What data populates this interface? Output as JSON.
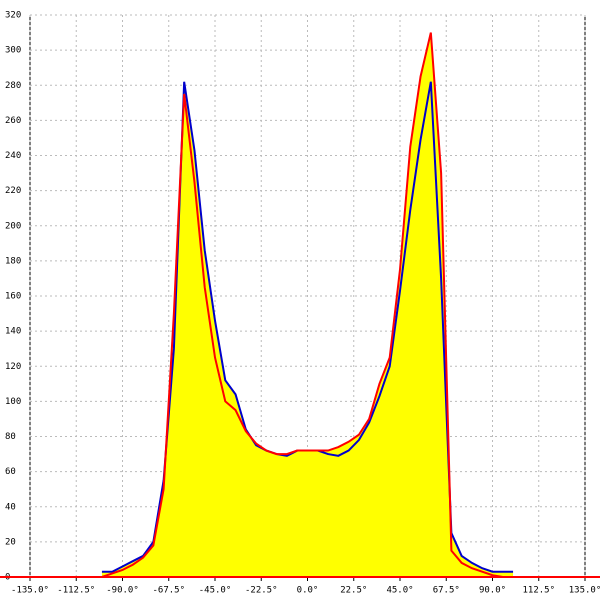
{
  "chart_data": {
    "type": "area",
    "x": [
      -100,
      -95,
      -90,
      -85,
      -80,
      -75,
      -70,
      -65,
      -60,
      -55,
      -50,
      -45,
      -40,
      -35,
      -30,
      -25,
      -20,
      -15,
      -10,
      -5,
      0,
      5,
      10,
      15,
      20,
      25,
      30,
      35,
      40,
      45,
      50,
      55,
      60,
      65,
      70,
      75,
      80,
      85,
      90,
      95,
      100
    ],
    "series": [
      {
        "color": "#0000cc",
        "values": [
          3,
          3,
          6,
          9,
          12,
          20,
          55,
          130,
          282,
          243,
          186,
          146,
          112,
          104,
          84,
          75,
          72,
          70,
          69,
          72,
          72,
          72,
          70,
          69,
          72,
          78,
          88,
          103,
          120,
          163,
          209,
          249,
          282,
          170,
          25,
          12,
          8,
          5,
          3,
          3,
          3
        ]
      },
      {
        "color": "#ff0000",
        "values": [
          0,
          2,
          4,
          7,
          11,
          18,
          50,
          150,
          275,
          225,
          165,
          125,
          100,
          95,
          83,
          76,
          72,
          70,
          70,
          72,
          72,
          72,
          72,
          74,
          77,
          81,
          90,
          110,
          125,
          175,
          245,
          285,
          310,
          230,
          15,
          8,
          5,
          3,
          1,
          0,
          0
        ]
      }
    ],
    "fill": "#ffff00",
    "grid": true,
    "xlim": [
      -135,
      135
    ],
    "ylim": [
      0,
      320
    ],
    "xticks": [
      {
        "value": -135,
        "label": "-135.0°"
      },
      {
        "value": -112.5,
        "label": "-112.5°"
      },
      {
        "value": -90,
        "label": "-90.0°"
      },
      {
        "value": -67.5,
        "label": "-67.5°"
      },
      {
        "value": -45,
        "label": "-45.0°"
      },
      {
        "value": -22.5,
        "label": "-22.5°"
      },
      {
        "value": 0,
        "label": "0.0°"
      },
      {
        "value": 22.5,
        "label": "22.5°"
      },
      {
        "value": 45,
        "label": "45.0°"
      },
      {
        "value": 67.5,
        "label": "67.5°"
      },
      {
        "value": 90,
        "label": "90.0°"
      },
      {
        "value": 112.5,
        "label": "112.5°"
      },
      {
        "value": 135,
        "label": "135.0°"
      }
    ],
    "yticks": [
      0,
      20,
      40,
      60,
      80,
      100,
      120,
      140,
      160,
      180,
      200,
      220,
      240,
      260,
      280,
      300,
      320
    ]
  }
}
